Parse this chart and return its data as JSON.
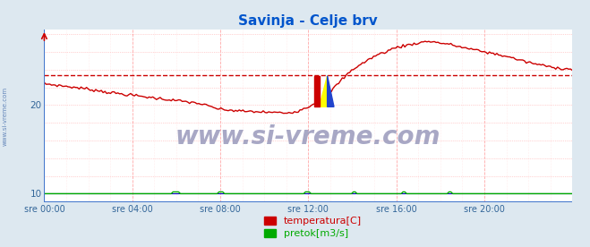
{
  "title": "Savinja - Celje brv",
  "title_color": "#0055cc",
  "bg_color": "#dde8f0",
  "plot_bg_color": "#ffffff",
  "watermark": "www.si-vreme.com",
  "watermark_color": "#9999bb",
  "xlabel_ticks": [
    "sre 00:00",
    "sre 04:00",
    "sre 08:00",
    "sre 12:00",
    "sre 16:00",
    "sre 20:00"
  ],
  "ylabel_ticks": [
    "10",
    "20"
  ],
  "ylabel_vals": [
    10,
    20
  ],
  "ylim": [
    9.0,
    28.5
  ],
  "xlim": [
    0,
    288
  ],
  "temp_color": "#cc0000",
  "pretok_color": "#00aa00",
  "visina_color": "#0000bb",
  "dashed_line_value": 23.4,
  "dashed_line_color": "#cc0000",
  "legend_items": [
    {
      "label": "temperatura[C]",
      "color": "#cc0000"
    },
    {
      "label": "pretok[m3/s]",
      "color": "#00aa00"
    }
  ],
  "sidebar_text": "www.si-vreme.com",
  "sidebar_color": "#6688bb",
  "spine_color": "#4477cc",
  "grid_major_color": "#ffaaaa",
  "grid_minor_color": "#ffdddd",
  "tick_color": "#336699",
  "temp_profile": {
    "t_hours": [
      0,
      1,
      2,
      3,
      4,
      5,
      6,
      7,
      8,
      9,
      10,
      11,
      11.5,
      12,
      12.5,
      13,
      13.5,
      14,
      15,
      16,
      17,
      17.5,
      18,
      18.5,
      19,
      20,
      21,
      22,
      23,
      24
    ],
    "values": [
      22.4,
      22.1,
      21.8,
      21.4,
      21.1,
      20.8,
      20.5,
      20.2,
      19.5,
      19.3,
      19.2,
      19.1,
      19.3,
      19.8,
      20.5,
      21.5,
      22.8,
      24.0,
      25.5,
      26.5,
      27.0,
      27.2,
      27.0,
      26.8,
      26.5,
      26.0,
      25.5,
      24.8,
      24.3,
      24.0
    ]
  }
}
